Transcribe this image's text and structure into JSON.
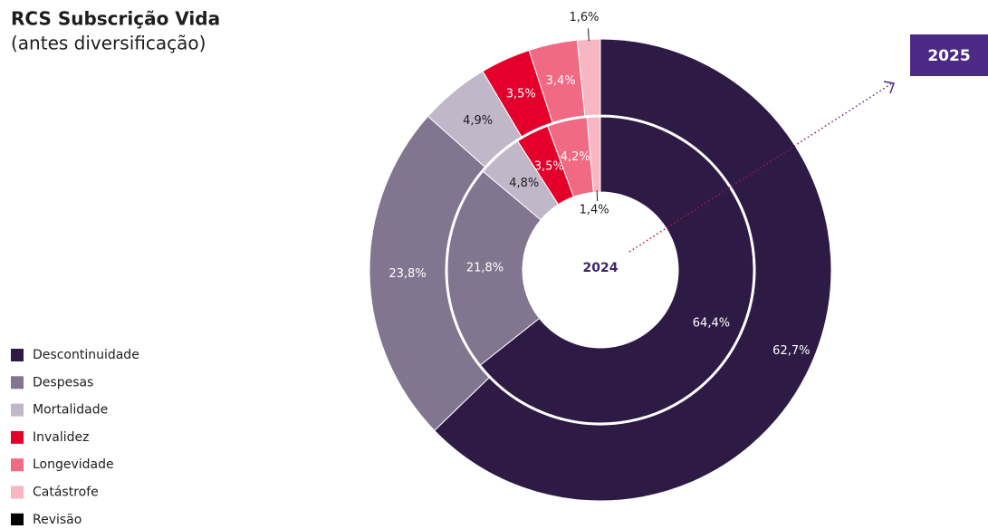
{
  "chart_data": {
    "type": "nested-donut",
    "title": "RCS Subscrição Vida",
    "subtitle": "(antes diversificação)",
    "categories": [
      "Descontinuidade",
      "Despesas",
      "Mortalidade",
      "Invalidez",
      "Longevidade",
      "Catástrofe",
      "Revisão"
    ],
    "colors": [
      "#2d1a45",
      "#82758f",
      "#c0b8c9",
      "#e4002b",
      "#ef6a82",
      "#f7b6c2",
      "#000000"
    ],
    "series": [
      {
        "name": "2024",
        "values": [
          64.4,
          21.8,
          4.8,
          3.5,
          4.2,
          1.4,
          null
        ],
        "value_labels": [
          "64,4%",
          "21,8%",
          "4,8%",
          "3,5%",
          "4,2%",
          "1,4%",
          null
        ]
      },
      {
        "name": "2025",
        "values": [
          62.7,
          23.8,
          4.9,
          3.5,
          3.4,
          1.6,
          null
        ],
        "value_labels": [
          "62,7%",
          "23,8%",
          "4,9%",
          "3,5%",
          "3,4%",
          "1,6%",
          null
        ]
      }
    ]
  }
}
